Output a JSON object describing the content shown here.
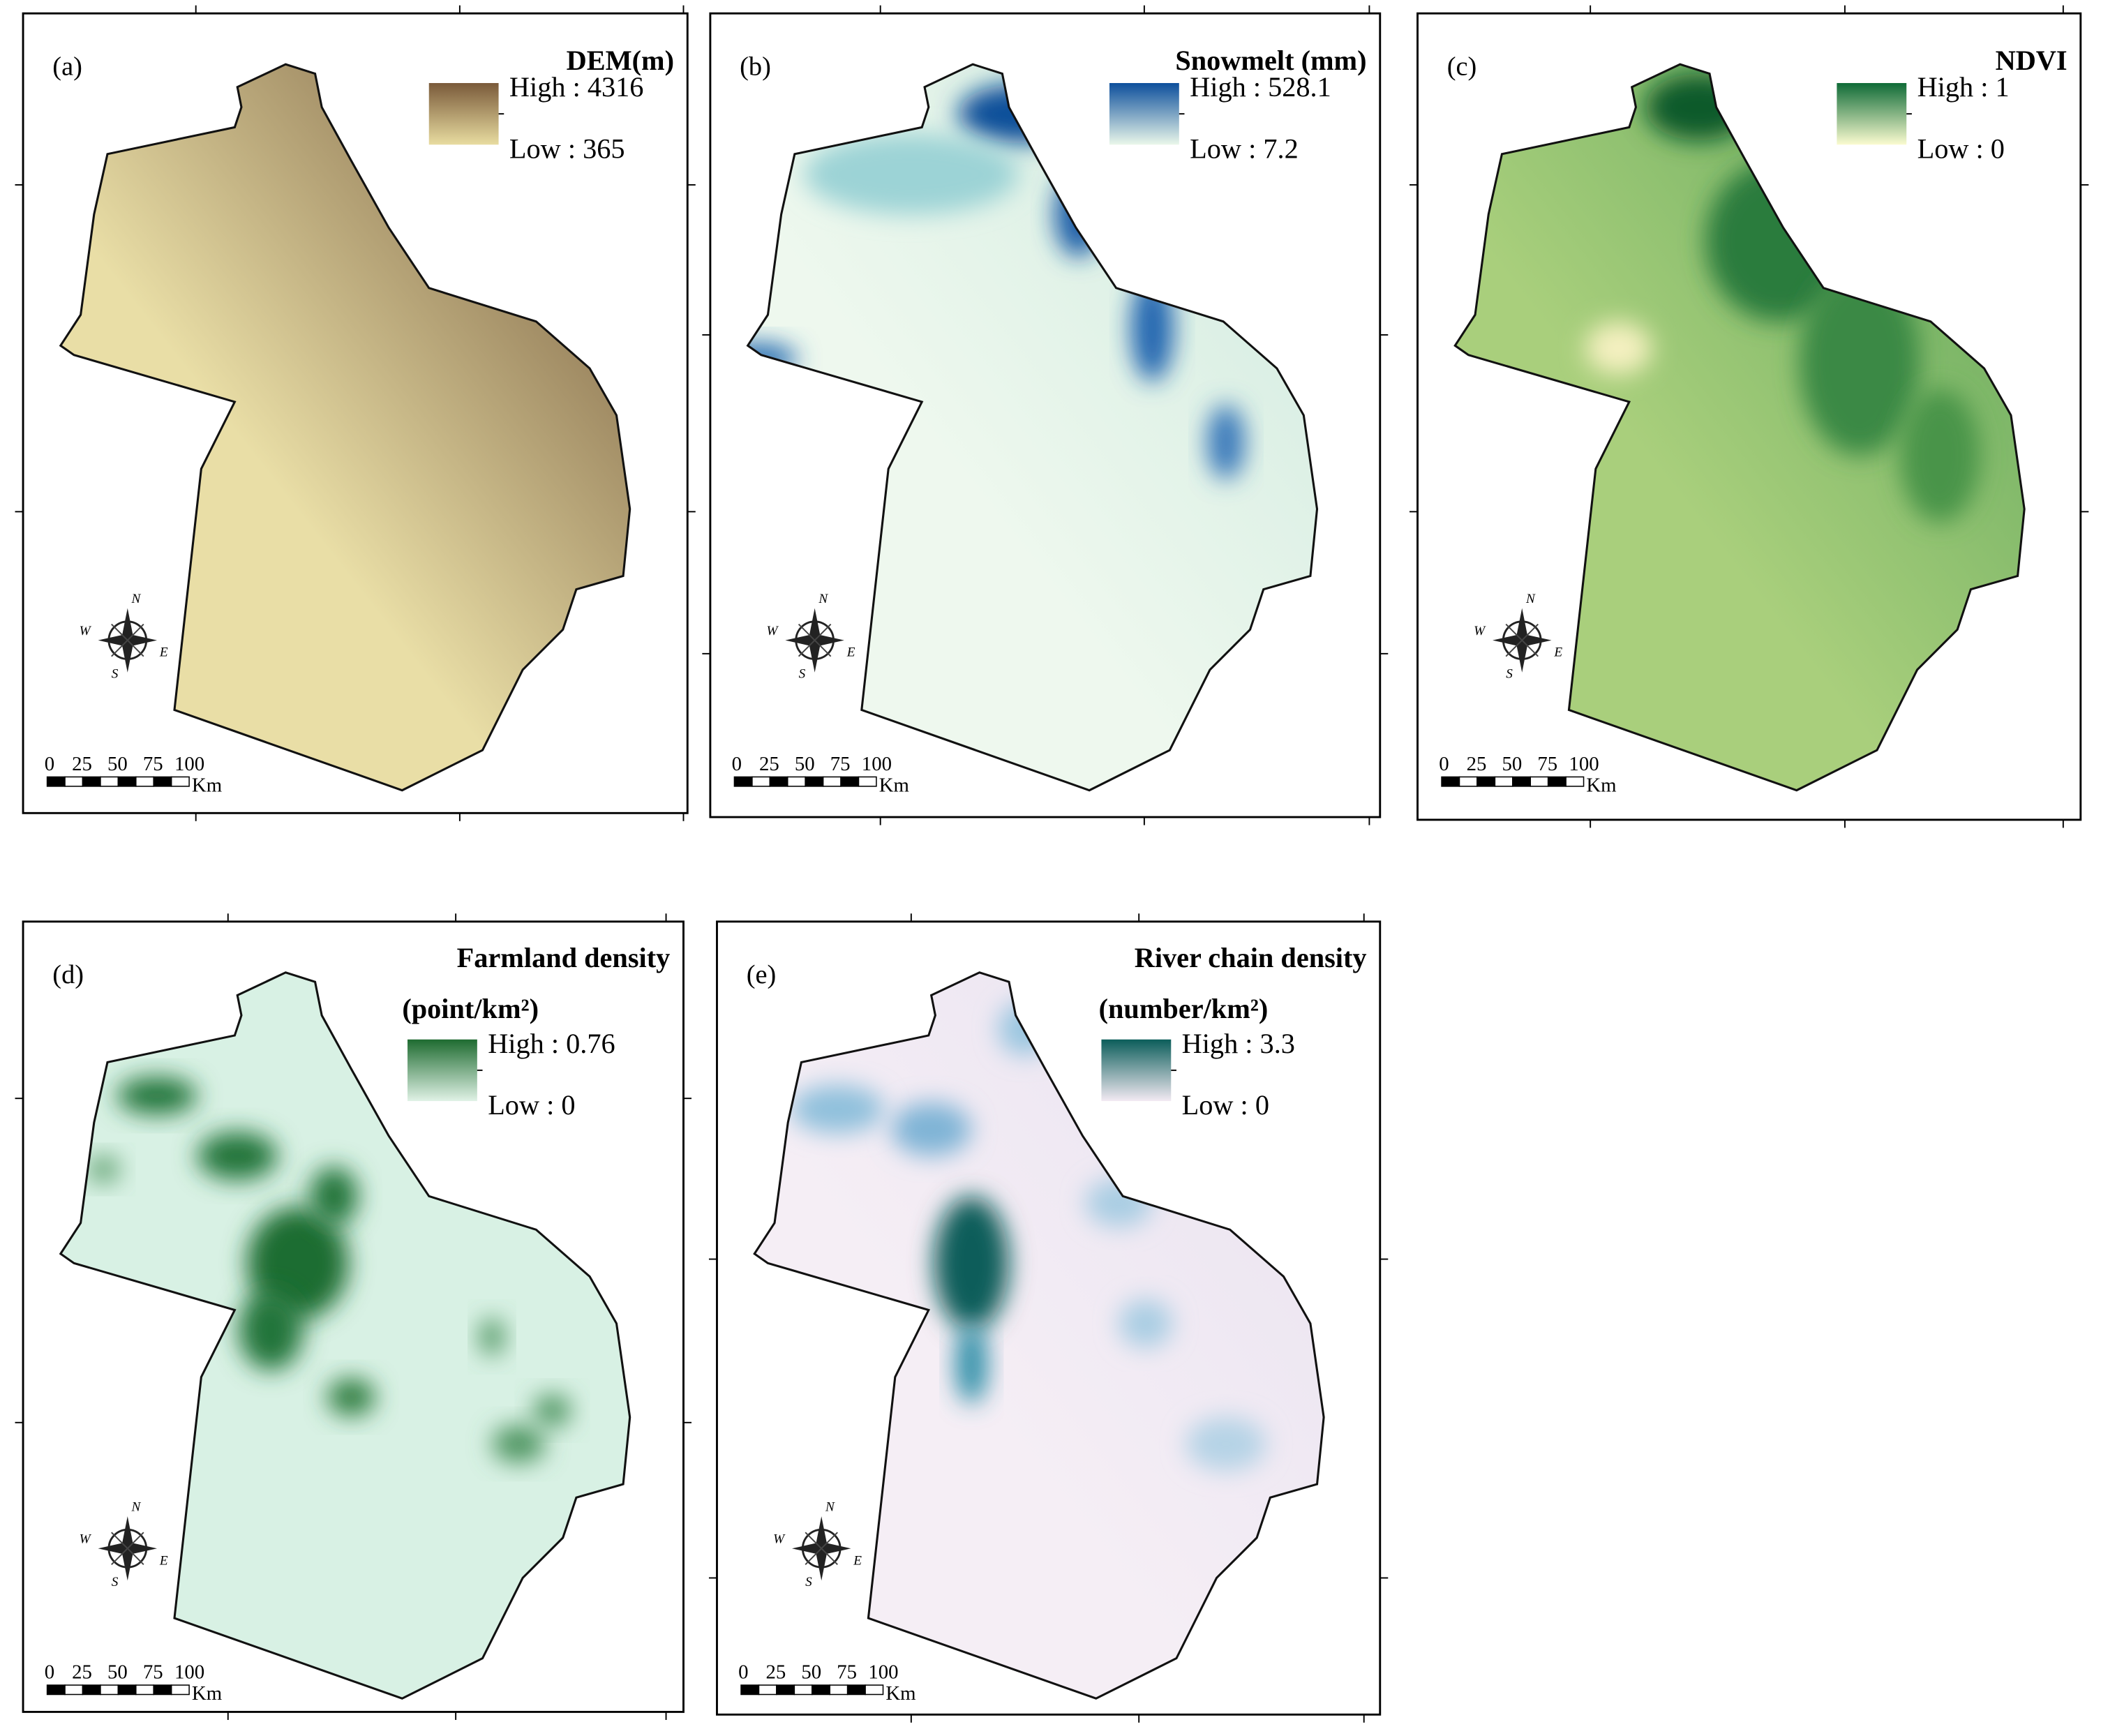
{
  "panels": [
    {
      "label": "(a)",
      "legend": {
        "title": "DEM(m)",
        "high": "High : 4316",
        "low": "Low : 365"
      },
      "scale_bar": {
        "ticks": [
          "0",
          "25",
          "50",
          "75",
          "100"
        ],
        "unit": "Km"
      },
      "compass": {
        "n": "N",
        "w": "W",
        "e": "E",
        "s": "S"
      }
    },
    {
      "label": "(b)",
      "legend": {
        "title": "Snowmelt (mm)",
        "high": "High : 528.1",
        "low": "Low : 7.2"
      },
      "scale_bar": {
        "ticks": [
          "0",
          "25",
          "50",
          "75",
          "100"
        ],
        "unit": "Km"
      },
      "compass": {
        "n": "N",
        "w": "W",
        "e": "E",
        "s": "S"
      }
    },
    {
      "label": "(c)",
      "legend": {
        "title": "NDVI",
        "high": "High : 1",
        "low": "Low : 0"
      },
      "scale_bar": {
        "ticks": [
          "0",
          "25",
          "50",
          "75",
          "100"
        ],
        "unit": "Km"
      },
      "compass": {
        "n": "N",
        "w": "W",
        "e": "E",
        "s": "S"
      }
    },
    {
      "label": "(d)",
      "legend": {
        "title": "Farmland density",
        "subtitle": "(point/km²)",
        "high": "High : 0.76",
        "low": "Low : 0"
      },
      "scale_bar": {
        "ticks": [
          "0",
          "25",
          "50",
          "75",
          "100"
        ],
        "unit": "Km"
      },
      "compass": {
        "n": "N",
        "w": "W",
        "e": "E",
        "s": "S"
      }
    },
    {
      "label": "(e)",
      "legend": {
        "title": "River chain density",
        "subtitle": "(number/km²)",
        "high": "High : 3.3",
        "low": "Low : 0"
      },
      "scale_bar": {
        "ticks": [
          "0",
          "25",
          "50",
          "75",
          "100"
        ],
        "unit": "Km"
      },
      "compass": {
        "n": "N",
        "w": "W",
        "e": "E",
        "s": "S"
      }
    }
  ]
}
